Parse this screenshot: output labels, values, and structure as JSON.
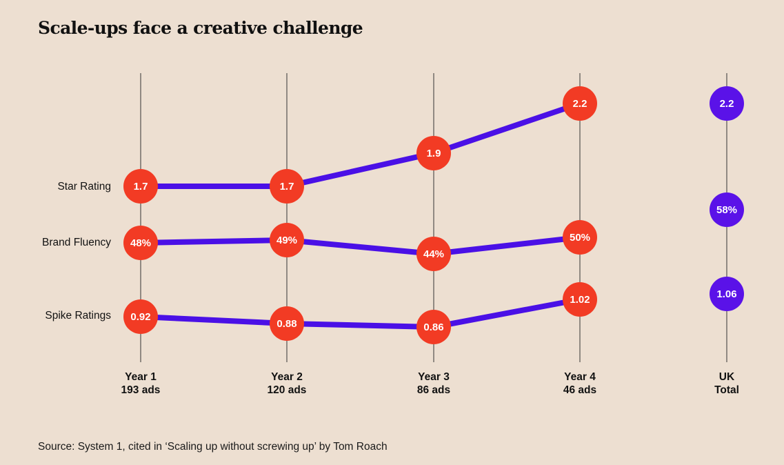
{
  "title": "Scale-ups face a creative challenge",
  "source": "Source: System 1, cited in ‘Scaling up without screwing up’ by Tom Roach",
  "colors": {
    "background": "#eddfd1",
    "line": "#4a10e6",
    "yearDot": "#f23b24",
    "ukDot": "#5a12e8",
    "text": "#111111"
  },
  "chart_data": {
    "type": "line",
    "title": "Scale-ups face a creative challenge",
    "categories": [
      {
        "line1": "Year 1",
        "line2": "193 ads"
      },
      {
        "line1": "Year 2",
        "line2": "120 ads"
      },
      {
        "line1": "Year 3",
        "line2": "86 ads"
      },
      {
        "line1": "Year 4",
        "line2": "46 ads"
      }
    ],
    "benchmark": {
      "line1": "UK",
      "line2": "Total"
    },
    "series": [
      {
        "name": "Star Rating",
        "values": [
          1.7,
          1.7,
          1.9,
          2.2
        ],
        "labels": [
          "1.7",
          "1.7",
          "1.9",
          "2.2"
        ],
        "uk_total": 2.2,
        "uk_label": "2.2",
        "ylim": [
          1.7,
          2.2
        ]
      },
      {
        "name": "Brand Fluency",
        "values": [
          48,
          49,
          44,
          50
        ],
        "labels": [
          "48%",
          "49%",
          "44%",
          "50%"
        ],
        "uk_total": 58,
        "uk_label": "58%",
        "ylim": [
          44,
          50
        ]
      },
      {
        "name": "Spike Ratings",
        "values": [
          0.92,
          0.88,
          0.86,
          1.02
        ],
        "labels": [
          "0.92",
          "0.88",
          "0.86",
          "1.02"
        ],
        "uk_total": 1.06,
        "uk_label": "1.06",
        "ylim": [
          0.86,
          1.02
        ]
      }
    ],
    "xlabel": "",
    "ylabel": "",
    "grid": false,
    "legend": "none"
  }
}
